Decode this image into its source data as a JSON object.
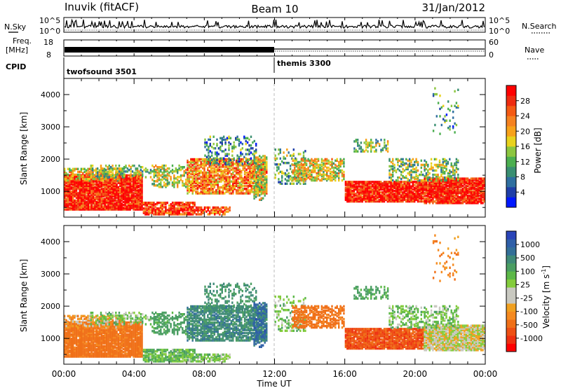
{
  "header": {
    "station": "Inuvik (fitACF)",
    "beam": "Beam 10",
    "date": "31/Jan/2012"
  },
  "top_panels": {
    "nsky": {
      "label": "N.Sky",
      "tick_top": "10^5",
      "tick_bottom": "10^0",
      "right_label": "N.Search"
    },
    "freq": {
      "label_line1": "Freq.",
      "label_line2": "[MHz]",
      "tick_top": "18",
      "tick_bottom": "8",
      "right_tick_top": "60",
      "right_tick_bottom": "0",
      "right_label": "Nave"
    },
    "cpid": {
      "label": "CPID",
      "segments": [
        {
          "name": "twofsound 3501",
          "start_hour": 0
        },
        {
          "name": "themis 3300",
          "start_hour": 12
        }
      ]
    }
  },
  "axes": {
    "x_label": "Time UT",
    "x_ticks": [
      "00:00",
      "04:00",
      "08:00",
      "12:00",
      "16:00",
      "20:00",
      "00:00"
    ],
    "x_range_hours": [
      0,
      24
    ],
    "y_label": "Slant Range [km]",
    "y_range_km": [
      200,
      4500
    ],
    "y_ticks": [
      "1000",
      "2000",
      "3000",
      "4000"
    ]
  },
  "colorbars": {
    "power": {
      "label": "Power [dB]",
      "ticks": [
        "4",
        "8",
        "12",
        "16",
        "20",
        "24",
        "28"
      ],
      "colors": [
        "#0018ff",
        "#1f3fa8",
        "#2f6fa0",
        "#3a8f72",
        "#4caf50",
        "#8cc63f",
        "#e8d21d",
        "#f7a21a",
        "#f58220",
        "#f45a14",
        "#ee2b10",
        "#ff0000"
      ]
    },
    "velocity": {
      "label": "Velocity [m s^-1]",
      "ticks": [
        "1000",
        "500",
        "100",
        "25",
        "-25",
        "-100",
        "-500",
        "-1000"
      ],
      "colors": [
        "#2a44b8",
        "#2f5fa8",
        "#336f98",
        "#3f8a78",
        "#4a9e62",
        "#5cb848",
        "#84cc3c",
        "#c8c8c0",
        "#c8c8c0",
        "#f0a020",
        "#f58a20",
        "#f07018",
        "#ee5014",
        "#ee3010",
        "#ff0000"
      ]
    }
  },
  "chart_data": {
    "type": "heatmap",
    "panels": [
      "power",
      "velocity"
    ],
    "x_unit": "hour UT",
    "y_unit": "km",
    "scatter_regions": [
      {
        "t0": 0.0,
        "t1": 4.5,
        "r0": 400,
        "r1": 1500,
        "density": 0.95,
        "power": 28,
        "velocity": -150
      },
      {
        "t0": 0.0,
        "t1": 3.5,
        "r0": 1300,
        "r1": 1700,
        "density": 0.55,
        "power": 18,
        "velocity": -60
      },
      {
        "t0": 1.5,
        "t1": 5.0,
        "r0": 1400,
        "r1": 1800,
        "density": 0.35,
        "power": 14,
        "velocity": 60
      },
      {
        "t0": 4.5,
        "t1": 7.5,
        "r0": 250,
        "r1": 650,
        "density": 0.75,
        "power": 26,
        "velocity": 80
      },
      {
        "t0": 5.0,
        "t1": 7.0,
        "r0": 1100,
        "r1": 1800,
        "density": 0.45,
        "power": 16,
        "velocity": 150
      },
      {
        "t0": 7.0,
        "t1": 11.6,
        "r0": 900,
        "r1": 2000,
        "density": 0.75,
        "power": 22,
        "velocity": 400
      },
      {
        "t0": 8.0,
        "t1": 11.0,
        "r0": 1800,
        "r1": 2700,
        "density": 0.3,
        "power": 10,
        "velocity": 300
      },
      {
        "t0": 7.5,
        "t1": 9.5,
        "r0": 250,
        "r1": 500,
        "density": 0.55,
        "power": 24,
        "velocity": 60
      },
      {
        "t0": 10.8,
        "t1": 11.6,
        "r0": 700,
        "r1": 2100,
        "density": 0.5,
        "power": 16,
        "velocity": 700
      },
      {
        "t0": 12.0,
        "t1": 13.8,
        "r0": 1200,
        "r1": 2300,
        "density": 0.25,
        "power": 12,
        "velocity": 60
      },
      {
        "t0": 13.0,
        "t1": 16.0,
        "r0": 1300,
        "r1": 2000,
        "density": 0.6,
        "power": 18,
        "velocity": -150
      },
      {
        "t0": 16.0,
        "t1": 20.5,
        "r0": 650,
        "r1": 1300,
        "density": 0.9,
        "power": 28,
        "velocity": -400
      },
      {
        "t0": 20.5,
        "t1": 24.0,
        "r0": 600,
        "r1": 1400,
        "density": 0.9,
        "power": 28,
        "velocity": 0
      },
      {
        "t0": 18.5,
        "t1": 22.5,
        "r0": 1300,
        "r1": 2000,
        "density": 0.35,
        "power": 14,
        "velocity": 60
      },
      {
        "t0": 16.5,
        "t1": 18.5,
        "r0": 2200,
        "r1": 2600,
        "density": 0.35,
        "power": 14,
        "velocity": 120
      },
      {
        "t0": 21.0,
        "t1": 22.5,
        "r0": 2700,
        "r1": 4200,
        "density": 0.12,
        "power": 10,
        "velocity": -100
      }
    ]
  }
}
